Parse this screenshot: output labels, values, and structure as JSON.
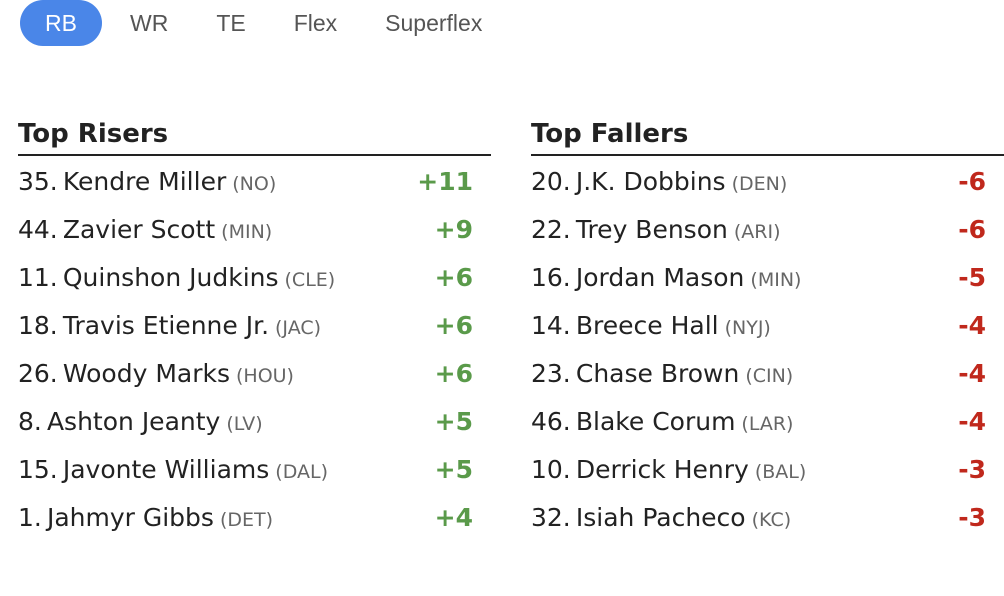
{
  "tabs": [
    {
      "label": "RB",
      "active": true
    },
    {
      "label": "WR",
      "active": false
    },
    {
      "label": "TE",
      "active": false
    },
    {
      "label": "Flex",
      "active": false
    },
    {
      "label": "Superflex",
      "active": false
    }
  ],
  "colors": {
    "active_tab": "#4a86e8",
    "riser": "#5a9a4a",
    "faller": "#c0281c"
  },
  "risers": {
    "title": "Top Risers",
    "rows": [
      {
        "rank": "35.",
        "name": "Kendre Miller",
        "team": "(NO)",
        "change": "+11"
      },
      {
        "rank": "44.",
        "name": "Zavier Scott",
        "team": "(MIN)",
        "change": "+9"
      },
      {
        "rank": "11.",
        "name": "Quinshon Judkins",
        "team": "(CLE)",
        "change": "+6"
      },
      {
        "rank": "18.",
        "name": "Travis Etienne Jr.",
        "team": "(JAC)",
        "change": "+6"
      },
      {
        "rank": "26.",
        "name": "Woody Marks",
        "team": "(HOU)",
        "change": "+6"
      },
      {
        "rank": "8.",
        "name": "Ashton Jeanty",
        "team": "(LV)",
        "change": "+5"
      },
      {
        "rank": "15.",
        "name": "Javonte Williams",
        "team": "(DAL)",
        "change": "+5"
      },
      {
        "rank": "1.",
        "name": "Jahmyr Gibbs",
        "team": "(DET)",
        "change": "+4"
      }
    ]
  },
  "fallers": {
    "title": "Top Fallers",
    "rows": [
      {
        "rank": "20.",
        "name": "J.K. Dobbins",
        "team": "(DEN)",
        "change": "-6"
      },
      {
        "rank": "22.",
        "name": "Trey Benson",
        "team": "(ARI)",
        "change": "-6"
      },
      {
        "rank": "16.",
        "name": "Jordan Mason",
        "team": "(MIN)",
        "change": "-5"
      },
      {
        "rank": "14.",
        "name": "Breece Hall",
        "team": "(NYJ)",
        "change": "-4"
      },
      {
        "rank": "23.",
        "name": "Chase Brown",
        "team": "(CIN)",
        "change": "-4"
      },
      {
        "rank": "46.",
        "name": "Blake Corum",
        "team": "(LAR)",
        "change": "-4"
      },
      {
        "rank": "10.",
        "name": "Derrick Henry",
        "team": "(BAL)",
        "change": "-3"
      },
      {
        "rank": "32.",
        "name": "Isiah Pacheco",
        "team": "(KC)",
        "change": "-3"
      }
    ]
  }
}
